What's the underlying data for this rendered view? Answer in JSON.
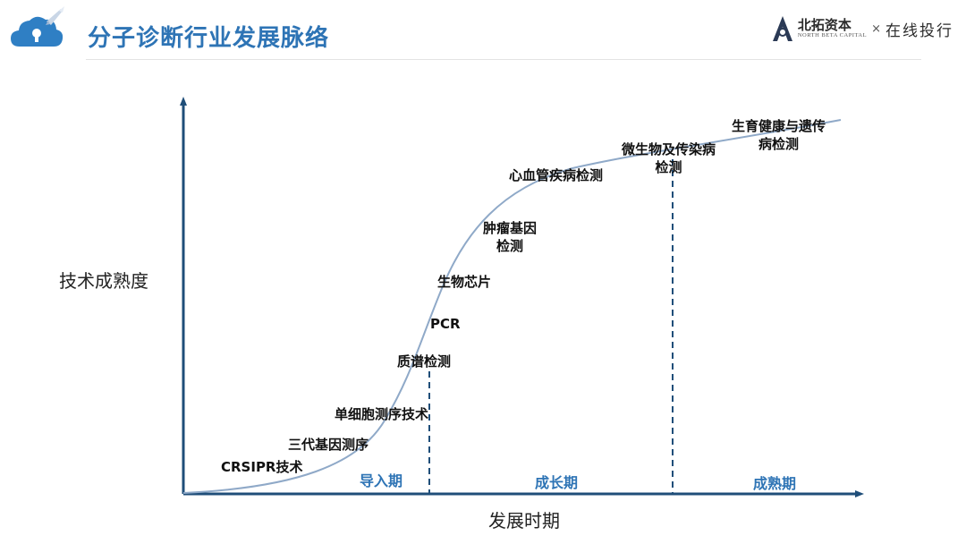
{
  "header": {
    "logo_icon": "cloud-lock-rocket-icon",
    "title": "分子诊断行业发展脉络",
    "title_color": "#2e74b5",
    "brand": {
      "logo_icon": "north-beta-capital-logo",
      "name_cn": "北拓资本",
      "name_en": "NORTH BETA CAPITAL",
      "separator": "×",
      "partner": "在线投行"
    }
  },
  "diagram": {
    "y_axis_label": "技术成熟度",
    "x_axis_label": "发展时期",
    "curve_color": "#8fa9c8",
    "axis_color": "#1f4e79",
    "stages": [
      {
        "label": "导入期"
      },
      {
        "label": "成长期"
      },
      {
        "label": "成熟期"
      }
    ],
    "milestones": [
      {
        "label": "CRSIPR技术"
      },
      {
        "label": "三代基因测序"
      },
      {
        "label": "单细胞测序技术"
      },
      {
        "label": "质谱检测"
      },
      {
        "label": "PCR"
      },
      {
        "label": "生物芯片"
      },
      {
        "label": "肿瘤基因\n检测"
      },
      {
        "label": "心血管疾病检测"
      },
      {
        "label": "微生物及传染病\n检测"
      },
      {
        "label": "生育健康与遗传\n病检测"
      }
    ]
  }
}
